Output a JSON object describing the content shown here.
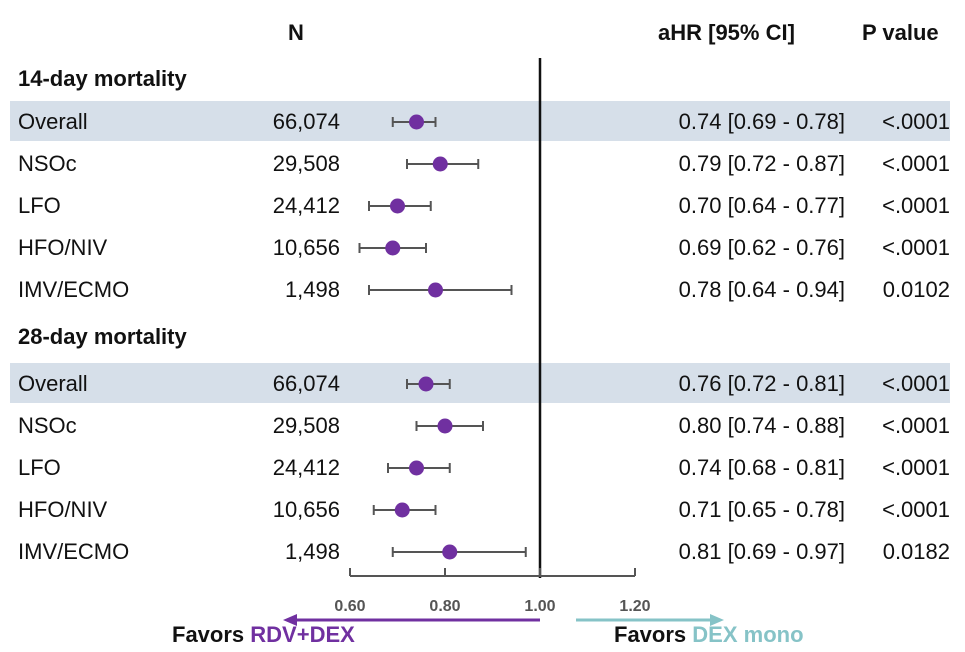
{
  "headers": {
    "n": "N",
    "ahr": "aHR [95% CI]",
    "p": "P value"
  },
  "favors": {
    "label": "Favors",
    "left_group": "RDV+DEX",
    "right_group": "DEX mono"
  },
  "colors": {
    "marker": "#7030a0",
    "band": "#d6dfe9",
    "left_arrow": "#7030a0",
    "right_arrow": "#86c3c7",
    "ci_line": "#555555"
  },
  "chart_data": {
    "type": "forest",
    "xlim": [
      0.5,
      1.25
    ],
    "xticks": [
      "0.60",
      "0.80",
      "1.00",
      "1.20"
    ],
    "reference_line": 1.0,
    "sections": [
      {
        "title": "14-day mortality",
        "rows": [
          {
            "label": "Overall",
            "n": "66,074",
            "hr": 0.74,
            "lo": 0.69,
            "hi": 0.78,
            "text": "0.74 [0.69 - 0.78]",
            "p": "<.0001",
            "shaded": true
          },
          {
            "label": "NSOc",
            "n": "29,508",
            "hr": 0.79,
            "lo": 0.72,
            "hi": 0.87,
            "text": "0.79 [0.72 - 0.87]",
            "p": "<.0001",
            "shaded": false
          },
          {
            "label": "LFO",
            "n": "24,412",
            "hr": 0.7,
            "lo": 0.64,
            "hi": 0.77,
            "text": "0.70 [0.64 - 0.77]",
            "p": "<.0001",
            "shaded": false
          },
          {
            "label": "HFO/NIV",
            "n": "10,656",
            "hr": 0.69,
            "lo": 0.62,
            "hi": 0.76,
            "text": "0.69 [0.62 - 0.76]",
            "p": "<.0001",
            "shaded": false
          },
          {
            "label": "IMV/ECMO",
            "n": "1,498",
            "hr": 0.78,
            "lo": 0.64,
            "hi": 0.94,
            "text": "0.78 [0.64 - 0.94]",
            "p": "0.0102",
            "shaded": false
          }
        ]
      },
      {
        "title": "28-day mortality",
        "rows": [
          {
            "label": "Overall",
            "n": "66,074",
            "hr": 0.76,
            "lo": 0.72,
            "hi": 0.81,
            "text": "0.76 [0.72 - 0.81]",
            "p": "<.0001",
            "shaded": true
          },
          {
            "label": "NSOc",
            "n": "29,508",
            "hr": 0.8,
            "lo": 0.74,
            "hi": 0.88,
            "text": "0.80 [0.74 - 0.88]",
            "p": "<.0001",
            "shaded": false
          },
          {
            "label": "LFO",
            "n": "24,412",
            "hr": 0.74,
            "lo": 0.68,
            "hi": 0.81,
            "text": "0.74 [0.68 - 0.81]",
            "p": "<.0001",
            "shaded": false
          },
          {
            "label": "HFO/NIV",
            "n": "10,656",
            "hr": 0.71,
            "lo": 0.65,
            "hi": 0.78,
            "text": "0.71 [0.65 - 0.78]",
            "p": "<.0001",
            "shaded": false
          },
          {
            "label": "IMV/ECMO",
            "n": "1,498",
            "hr": 0.81,
            "lo": 0.69,
            "hi": 0.97,
            "text": "0.81 [0.69 - 0.97]",
            "p": "0.0182",
            "shaded": false
          }
        ]
      }
    ]
  }
}
